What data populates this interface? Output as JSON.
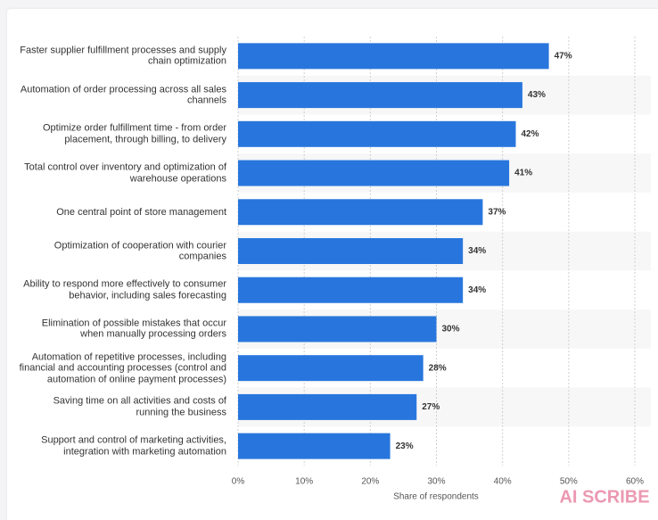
{
  "chart_data": {
    "type": "bar",
    "orientation": "horizontal",
    "categories": [
      "Faster supplier fulfillment processes and supply chain optimization",
      "Automation of order processing across all sales channels",
      "Optimize order fulfillment time - from order placement, through billing, to delivery",
      "Total control over inventory and optimization of warehouse operations",
      "One central point of store management",
      "Optimization of cooperation with courier companies",
      "Ability to respond more effectively to consumer behavior, including sales forecasting",
      "Elimination of possible mistakes that occur when manually processing orders",
      "Automation of repetitive processes, including financial and accounting processes (control and automation of online payment processes)",
      "Saving time on all activities and costs of running the business",
      "Support and control of marketing activities, integration with marketing automation"
    ],
    "values": [
      47,
      43,
      42,
      41,
      37,
      34,
      34,
      30,
      28,
      27,
      23
    ],
    "value_labels": [
      "47%",
      "43%",
      "42%",
      "41%",
      "37%",
      "34%",
      "34%",
      "30%",
      "28%",
      "27%",
      "23%"
    ],
    "color": "#2876dd",
    "xlabel": "Share of respondents",
    "xlim": [
      0,
      60
    ],
    "xticks": [
      {
        "value": 0,
        "label": "0%"
      },
      {
        "value": 10,
        "label": "10%"
      },
      {
        "value": 20,
        "label": "20%"
      },
      {
        "value": 30,
        "label": "30%"
      },
      {
        "value": 40,
        "label": "40%"
      },
      {
        "value": 50,
        "label": "50%"
      },
      {
        "value": 60,
        "label": "60%"
      }
    ],
    "grid": true,
    "watermark": "AI SCRIBE"
  }
}
